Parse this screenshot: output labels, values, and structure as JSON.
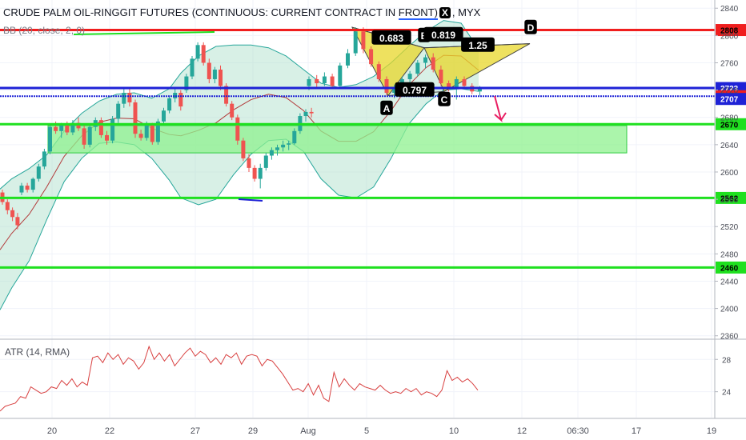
{
  "legend": {
    "title_pre": "CRUDE PALM OIL-RINGGIT FUTURES (CONTINUOUS: CURRENT CONTRACT IN ",
    "title_front": "FRONT)",
    "title_post": ", MYX",
    "bb": "BB (20, close, 2, 0)",
    "atr": "ATR (14, RMA)"
  },
  "colors": {
    "up": "#26a69a",
    "down": "#ef5350",
    "bb_band": "#26a69a",
    "bb_basis": "#b23a3a",
    "bb_fill": "#a8ddc7",
    "red_level": "#f01e1e",
    "blue_level": "#1e22d6",
    "green_level": "#1fe01f",
    "zone_fill": "#8ff18f",
    "harmonic_fill": "#e8d72a",
    "atr_line": "#d84040",
    "arrow": "#e91e63"
  },
  "chart_data": [
    {
      "type": "candlestick",
      "title": "CRUDE PALM OIL-RINGGIT FUTURES (CONTINUOUS: CURRENT CONTRACT IN FRONT), MYX",
      "x_axis": {
        "tick_labels": [
          "20",
          "22",
          "27",
          "29",
          "Aug",
          "5",
          "10",
          "12",
          "06:30",
          "17",
          "19"
        ]
      },
      "y_axis": {
        "ylim": [
          2355,
          2852
        ],
        "tick_labels": [
          "2840",
          "2800",
          "2760",
          "2720",
          "2680",
          "2640",
          "2600",
          "2560",
          "2520",
          "2480",
          "2440",
          "2400",
          "2360"
        ],
        "tick_values": [
          2840,
          2800,
          2760,
          2720,
          2680,
          2640,
          2600,
          2560,
          2520,
          2480,
          2440,
          2400,
          2360
        ]
      },
      "candles": [
        [
          2570,
          2574,
          2552,
          2556
        ],
        [
          2556,
          2560,
          2538,
          2544
        ],
        [
          2544,
          2548,
          2528,
          2534
        ],
        [
          2534,
          2540,
          2516,
          2522
        ],
        [
          2570,
          2584,
          2566,
          2580
        ],
        [
          2580,
          2584,
          2570,
          2574
        ],
        [
          2574,
          2592,
          2570,
          2590
        ],
        [
          2590,
          2612,
          2586,
          2608
        ],
        [
          2608,
          2634,
          2604,
          2630
        ],
        [
          2630,
          2670,
          2626,
          2666
        ],
        [
          2666,
          2674,
          2656,
          2660
        ],
        [
          2660,
          2672,
          2650,
          2668
        ],
        [
          2668,
          2674,
          2654,
          2658
        ],
        [
          2658,
          2676,
          2654,
          2672
        ],
        [
          2672,
          2680,
          2660,
          2664
        ],
        [
          2664,
          2668,
          2634,
          2640
        ],
        [
          2640,
          2670,
          2636,
          2666
        ],
        [
          2666,
          2680,
          2660,
          2676
        ],
        [
          2676,
          2680,
          2650,
          2654
        ],
        [
          2654,
          2660,
          2640,
          2646
        ],
        [
          2646,
          2682,
          2642,
          2678
        ],
        [
          2678,
          2704,
          2672,
          2700
        ],
        [
          2700,
          2722,
          2694,
          2716
        ],
        [
          2716,
          2722,
          2696,
          2702
        ],
        [
          2702,
          2706,
          2650,
          2656
        ],
        [
          2656,
          2662,
          2646,
          2650
        ],
        [
          2650,
          2674,
          2646,
          2668
        ],
        [
          2668,
          2672,
          2640,
          2644
        ],
        [
          2644,
          2678,
          2640,
          2674
        ],
        [
          2674,
          2694,
          2670,
          2690
        ],
        [
          2690,
          2712,
          2686,
          2708
        ],
        [
          2708,
          2722,
          2702,
          2716
        ],
        [
          2716,
          2720,
          2690,
          2696
        ],
        [
          2720,
          2744,
          2716,
          2740
        ],
        [
          2740,
          2770,
          2736,
          2766
        ],
        [
          2766,
          2790,
          2762,
          2786
        ],
        [
          2786,
          2790,
          2756,
          2760
        ],
        [
          2760,
          2766,
          2730,
          2736
        ],
        [
          2736,
          2754,
          2730,
          2750
        ],
        [
          2750,
          2756,
          2720,
          2726
        ],
        [
          2726,
          2730,
          2696,
          2700
        ],
        [
          2700,
          2704,
          2676,
          2680
        ],
        [
          2680,
          2684,
          2640,
          2646
        ],
        [
          2646,
          2650,
          2616,
          2620
        ],
        [
          2620,
          2626,
          2600,
          2606
        ],
        [
          2606,
          2610,
          2586,
          2590
        ],
        [
          2590,
          2612,
          2576,
          2606
        ],
        [
          2606,
          2628,
          2602,
          2624
        ],
        [
          2624,
          2636,
          2618,
          2632
        ],
        [
          2632,
          2640,
          2624,
          2636
        ],
        [
          2636,
          2646,
          2630,
          2640
        ],
        [
          2640,
          2646,
          2632,
          2642
        ],
        [
          2642,
          2664,
          2640,
          2660
        ],
        [
          2660,
          2686,
          2656,
          2682
        ],
        [
          2682,
          2692,
          2674,
          2688
        ],
        [
          2688,
          2694,
          2680,
          2686
        ],
        [
          2726,
          2740,
          2720,
          2736
        ],
        [
          2736,
          2742,
          2724,
          2730
        ],
        [
          2730,
          2746,
          2726,
          2740
        ],
        [
          2740,
          2744,
          2722,
          2726
        ],
        [
          2726,
          2760,
          2722,
          2756
        ],
        [
          2756,
          2780,
          2752,
          2774
        ],
        [
          2774,
          2812,
          2770,
          2806
        ],
        [
          2806,
          2812,
          2774,
          2780
        ],
        [
          2780,
          2784,
          2754,
          2758
        ],
        [
          2758,
          2762,
          2732,
          2736
        ],
        [
          2736,
          2740,
          2712,
          2716
        ],
        [
          2716,
          2728,
          2708,
          2724
        ],
        [
          2724,
          2740,
          2718,
          2736
        ],
        [
          2736,
          2748,
          2730,
          2744
        ],
        [
          2744,
          2764,
          2740,
          2760
        ],
        [
          2760,
          2772,
          2752,
          2768
        ],
        [
          2768,
          2774,
          2746,
          2750
        ],
        [
          2750,
          2756,
          2726,
          2730
        ],
        [
          2730,
          2734,
          2718,
          2722
        ],
        [
          2722,
          2740,
          2706,
          2736
        ],
        [
          2736,
          2740,
          2722,
          2726
        ],
        [
          2726,
          2730,
          2714,
          2718
        ],
        [
          2718,
          2726,
          2712,
          2724
        ]
      ],
      "bollinger_bands": {
        "upper": [
          [
            2570,
            2575
          ],
          [
            2580,
            2590
          ],
          [
            2595,
            2605
          ],
          [
            2610,
            2625
          ],
          [
            2625,
            2660
          ],
          [
            2640,
            2686
          ],
          [
            2655,
            2704
          ],
          [
            2670,
            2714
          ],
          [
            2685,
            2716
          ],
          [
            2700,
            2708
          ],
          [
            2715,
            2722
          ],
          [
            2725,
            2745
          ],
          [
            2740,
            2770
          ],
          [
            2755,
            2784
          ],
          [
            2770,
            2786
          ],
          [
            2785,
            2786
          ],
          [
            2800,
            2782
          ],
          [
            2815,
            2770
          ],
          [
            2830,
            2750
          ],
          [
            2845,
            2730
          ],
          [
            2860,
            2724
          ],
          [
            2875,
            2728
          ],
          [
            2890,
            2740
          ],
          [
            2905,
            2760
          ],
          [
            2920,
            2784
          ],
          [
            2935,
            2806
          ],
          [
            2950,
            2822
          ],
          [
            2965,
            2818
          ],
          [
            2980,
            2780
          ]
        ],
        "lower": [
          [
            2570,
            2398
          ],
          [
            2580,
            2430
          ],
          [
            2595,
            2470
          ],
          [
            2610,
            2530
          ],
          [
            2625,
            2586
          ],
          [
            2640,
            2620
          ],
          [
            2655,
            2642
          ],
          [
            2670,
            2644
          ],
          [
            2685,
            2640
          ],
          [
            2700,
            2620
          ],
          [
            2715,
            2588
          ],
          [
            2725,
            2562
          ],
          [
            2740,
            2552
          ],
          [
            2755,
            2560
          ],
          [
            2770,
            2596
          ],
          [
            2785,
            2626
          ],
          [
            2800,
            2646
          ],
          [
            2815,
            2648
          ],
          [
            2830,
            2630
          ],
          [
            2845,
            2590
          ],
          [
            2860,
            2566
          ],
          [
            2875,
            2562
          ],
          [
            2890,
            2578
          ],
          [
            2905,
            2620
          ],
          [
            2920,
            2670
          ],
          [
            2935,
            2700
          ],
          [
            2950,
            2720
          ],
          [
            2965,
            2722
          ],
          [
            2980,
            2718
          ]
        ],
        "basis": [
          [
            2570,
            2486
          ],
          [
            2580,
            2510
          ],
          [
            2595,
            2538
          ],
          [
            2610,
            2578
          ],
          [
            2625,
            2623
          ],
          [
            2640,
            2653
          ],
          [
            2655,
            2673
          ],
          [
            2670,
            2679
          ],
          [
            2685,
            2678
          ],
          [
            2700,
            2664
          ],
          [
            2715,
            2655
          ],
          [
            2725,
            2653
          ],
          [
            2740,
            2661
          ],
          [
            2755,
            2672
          ],
          [
            2770,
            2691
          ],
          [
            2785,
            2706
          ],
          [
            2800,
            2714
          ],
          [
            2815,
            2709
          ],
          [
            2830,
            2690
          ],
          [
            2845,
            2660
          ],
          [
            2860,
            2645
          ],
          [
            2875,
            2645
          ],
          [
            2890,
            2659
          ],
          [
            2905,
            2690
          ],
          [
            2920,
            2727
          ],
          [
            2935,
            2753
          ],
          [
            2950,
            2771
          ],
          [
            2965,
            2770
          ],
          [
            2980,
            2749
          ]
        ]
      },
      "horizontal_levels": [
        {
          "value": 2808,
          "label": "2808",
          "style": "red"
        },
        {
          "value": 2723,
          "label": "2723",
          "style": "blue"
        },
        {
          "value": 2711,
          "label": "2711",
          "style": "blue-dotted"
        },
        {
          "value": 2707,
          "label": "2707",
          "style": "blue-tag"
        },
        {
          "value": 2670,
          "label": "2670",
          "style": "green"
        },
        {
          "value": 2562,
          "label": "2562",
          "style": "green"
        },
        {
          "value": 2460,
          "label": "2460",
          "style": "green"
        }
      ],
      "support_zone": {
        "high": 2668,
        "low": 2628
      },
      "harmonic_pattern": {
        "points": [
          {
            "label": "X",
            "value": 2812
          },
          {
            "label": "A",
            "value": 2712
          },
          {
            "label": "B",
            "value": 2782
          },
          {
            "label": "C",
            "value": 2718
          },
          {
            "label": "D",
            "value": 2788
          }
        ],
        "ratios": [
          "0.683",
          "0.819",
          "0.797",
          "1.25"
        ]
      }
    },
    {
      "type": "line",
      "title": "ATR (14, RMA)",
      "y_axis": {
        "tick_labels": [
          "28",
          "24"
        ],
        "tick_values": [
          28,
          24
        ],
        "ylim": [
          20.8,
          30.4
        ]
      },
      "series": [
        {
          "values": [
            21.6,
            22.2,
            22.4,
            22.6,
            23.4,
            23.2,
            24.6,
            24.2,
            23.8,
            24.0,
            24.6,
            24.4,
            25.4,
            24.8,
            25.6,
            24.6,
            25.2,
            24.8,
            28.2,
            28.4,
            27.6,
            28.8,
            28.0,
            28.6,
            27.4,
            28.2,
            27.8,
            26.8,
            27.6,
            29.6,
            28.0,
            28.8,
            27.8,
            28.6,
            27.2,
            28.0,
            28.8,
            29.4,
            28.4,
            29.0,
            28.6,
            27.6,
            28.2,
            27.4,
            28.6,
            28.2,
            28.8,
            27.4,
            28.4,
            28.6,
            28.4,
            27.2,
            28.0,
            27.8,
            27.0,
            26.2,
            25.2,
            24.2,
            24.4,
            24.0,
            25.0,
            23.6,
            24.8,
            23.2,
            22.8,
            26.4,
            24.6,
            25.6,
            24.8,
            24.2,
            25.0,
            24.6,
            24.4,
            24.2,
            24.8,
            24.2,
            23.8,
            24.0,
            23.8,
            24.4,
            24.0,
            24.4,
            23.6,
            24.0,
            23.8,
            23.4,
            24.2,
            26.6,
            25.4,
            25.8,
            25.2,
            25.6,
            25.0,
            24.2
          ]
        }
      ]
    }
  ]
}
